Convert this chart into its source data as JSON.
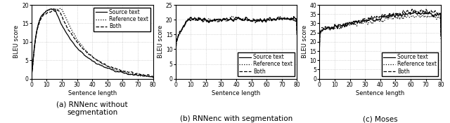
{
  "figsize": [
    6.4,
    1.76
  ],
  "dpi": 100,
  "subplots": [
    {
      "caption": "(a) RNNenc without\nsegmentation",
      "ylabel": "BLEU score",
      "xlabel": "Sentence length",
      "xlim": [
        0,
        80
      ],
      "ylim": [
        0,
        20
      ],
      "yticks": [
        0,
        5,
        10,
        15,
        20
      ],
      "xticks": [
        0,
        10,
        20,
        30,
        40,
        50,
        60,
        70,
        80
      ],
      "legend_loc": "upper right"
    },
    {
      "caption": "(b) RNNenc with segmentation",
      "ylabel": "BLEU score",
      "xlabel": "Sentence length",
      "xlim": [
        0,
        80
      ],
      "ylim": [
        0,
        25
      ],
      "yticks": [
        0,
        5,
        10,
        15,
        20,
        25
      ],
      "xticks": [
        0,
        10,
        20,
        30,
        40,
        50,
        60,
        70,
        80
      ],
      "legend_loc": "lower center"
    },
    {
      "caption": "(c) Moses",
      "ylabel": "BLEU score",
      "xlabel": "Sentence length",
      "xlim": [
        0,
        80
      ],
      "ylim": [
        0,
        40
      ],
      "yticks": [
        0,
        5,
        10,
        15,
        20,
        25,
        30,
        35,
        40
      ],
      "xticks": [
        0,
        10,
        20,
        30,
        40,
        50,
        60,
        70,
        80
      ],
      "legend_loc": "lower center"
    }
  ],
  "legend_labels": [
    "Source text",
    "Reference text",
    "Both"
  ],
  "line_styles": [
    {
      "linestyle": "-",
      "linewidth": 0.9,
      "color": "black"
    },
    {
      "linestyle": ":",
      "linewidth": 0.9,
      "color": "black"
    },
    {
      "linestyle": "--",
      "linewidth": 0.9,
      "color": "black"
    }
  ],
  "background_color": "white",
  "grid_color": "#bbbbbb",
  "caption_fontsize": 7.5,
  "label_fontsize": 6,
  "tick_fontsize": 5.5,
  "legend_fontsize": 5.5
}
